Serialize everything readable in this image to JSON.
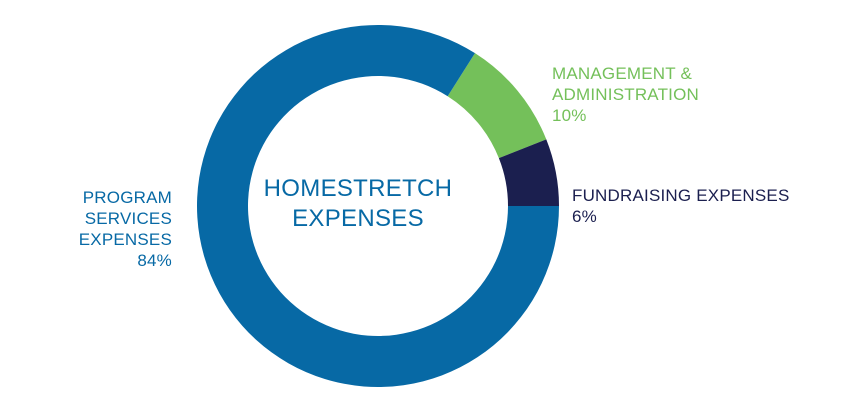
{
  "chart_data": {
    "type": "pie",
    "donut": true,
    "title": "HOMESTRETCH EXPENSES",
    "title_lines": [
      "HOMESTRETCH",
      "EXPENSES"
    ],
    "categories": [
      "PROGRAM SERVICES EXPENSES",
      "MANAGEMENT & ADMINISTRATION",
      "FUNDRAISING EXPENSES"
    ],
    "values": [
      84,
      10,
      6
    ],
    "value_labels": [
      "84%",
      "10%",
      "6%"
    ],
    "label_lines": [
      [
        "PROGRAM",
        "SERVICES",
        "EXPENSES"
      ],
      [
        "MANAGEMENT &",
        "ADMINISTRATION"
      ],
      [
        "FUNDRAISING EXPENSES"
      ]
    ],
    "colors": [
      "#0769a5",
      "#74c05a",
      "#1b1f4f"
    ],
    "title_color": "#0769a5"
  }
}
